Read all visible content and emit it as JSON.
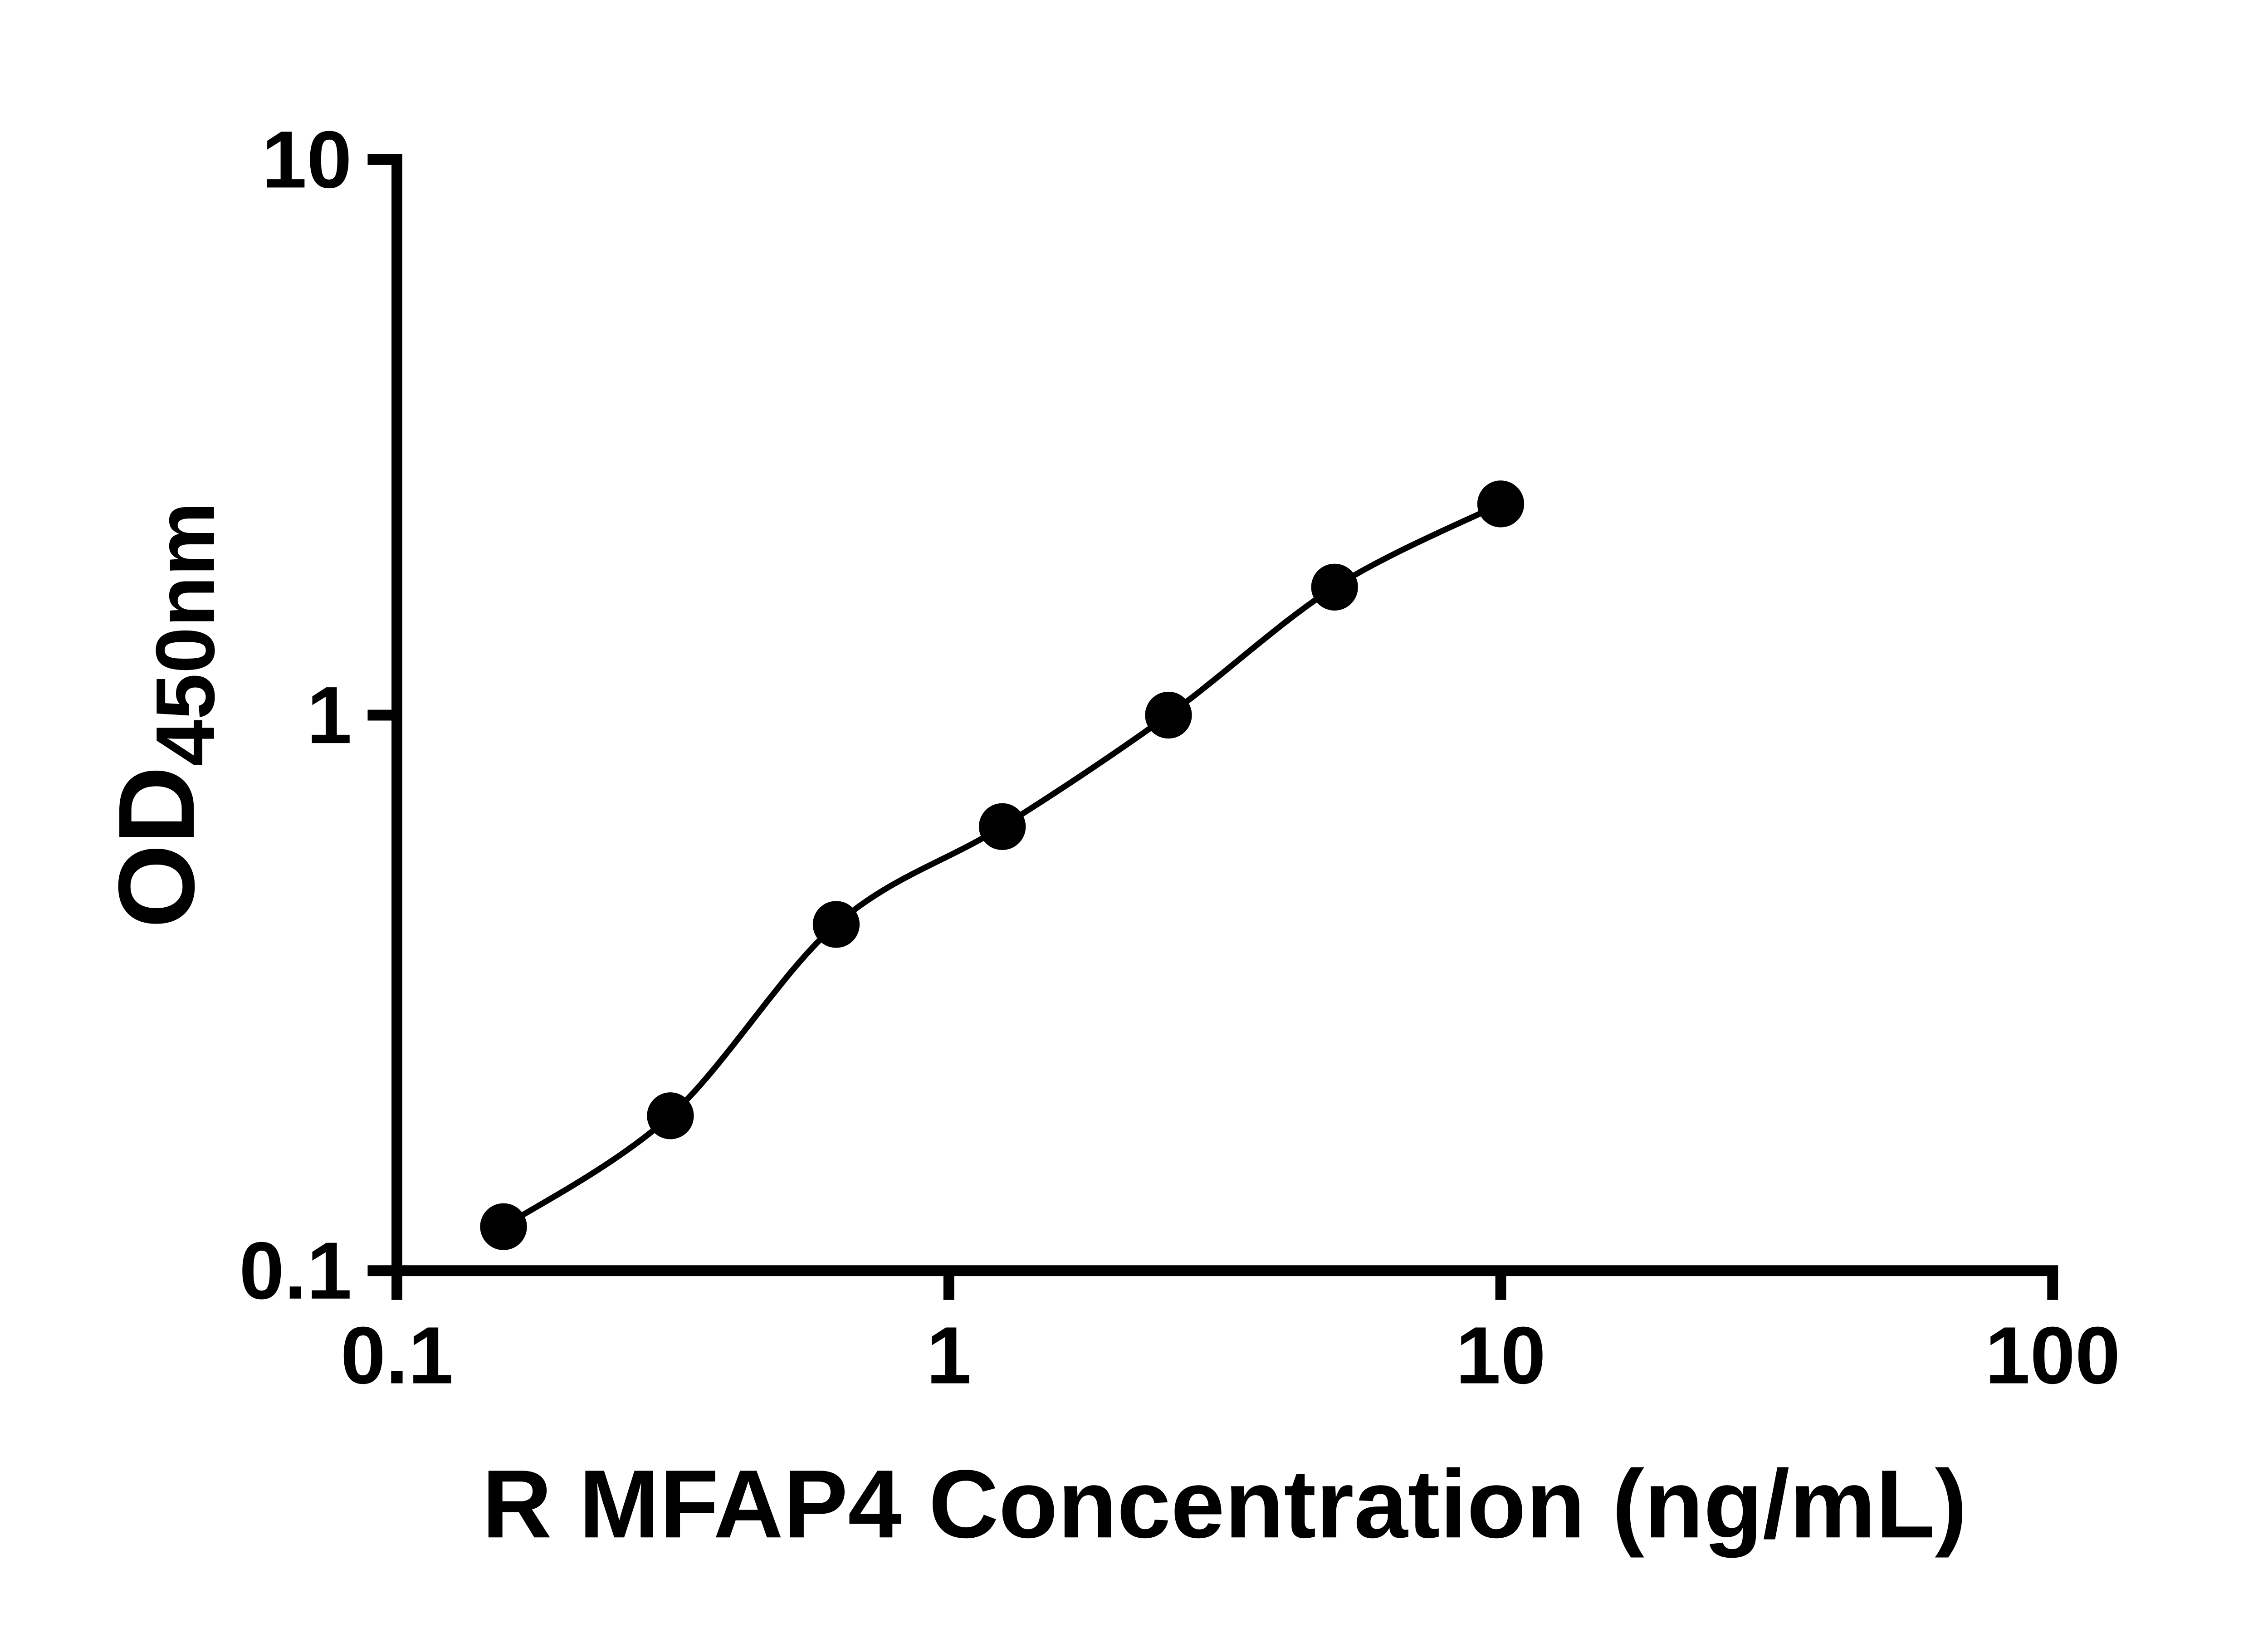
{
  "page": {
    "background_color": "#ffffff"
  },
  "chart_data": {
    "type": "scatter",
    "title": "",
    "xlabel": "R MFAP4 Concentration (ng/mL)",
    "ylabel": "OD",
    "ylabel_subscript": "450nm",
    "x_scale": "log",
    "y_scale": "log",
    "xlim": [
      0.1,
      100
    ],
    "ylim": [
      0.1,
      10
    ],
    "x_tick_values": [
      0.1,
      1,
      10,
      100
    ],
    "x_tick_labels": [
      "0.1",
      "1",
      "10",
      "100"
    ],
    "y_tick_values": [
      0.1,
      1,
      10
    ],
    "y_tick_labels": [
      "0.1",
      "1",
      "10"
    ],
    "grid": false,
    "legend": null,
    "fit_line": true,
    "axis_color": "#000000",
    "line_color": "#000000",
    "marker_color": "#000000",
    "x": [
      0.156,
      0.313,
      0.625,
      1.25,
      2.5,
      5,
      10
    ],
    "y": [
      0.12,
      0.19,
      0.42,
      0.63,
      1.0,
      1.7,
      2.4
    ]
  }
}
